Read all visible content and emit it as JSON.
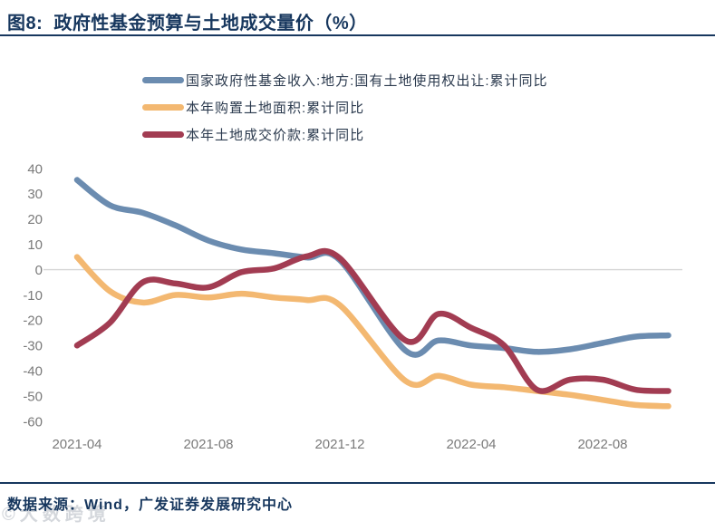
{
  "header": {
    "title": "图8:  政府性基金预算与土地成交量价（%）"
  },
  "source": {
    "text": "数据来源：Wind，广发证券发展研究中心"
  },
  "watermark": {
    "text": "©大数跨境"
  },
  "colors": {
    "title_navy": "#17375e",
    "axis_text": "#7a7a7a",
    "zero_line": "#d6d6d6",
    "series_blue": "#6b8cb0",
    "series_orange": "#f3b871",
    "series_red": "#a23c52"
  },
  "chart_data": {
    "type": "line",
    "title": "图8: 政府性基金预算与土地成交量价（%）",
    "xlabel": "",
    "ylabel": "",
    "ylim": [
      -60,
      40
    ],
    "yticks": [
      40,
      30,
      20,
      10,
      0,
      -10,
      -20,
      -30,
      -40,
      -50,
      -60
    ],
    "grid": "zero-line-only",
    "legend_position": "top-left",
    "categories": [
      "2021-04",
      "2021-05",
      "2021-06",
      "2021-07",
      "2021-08",
      "2021-09",
      "2021-10",
      "2021-11",
      "2021-12",
      "2022-02",
      "2022-03",
      "2022-04",
      "2022-05",
      "2022-06",
      "2022-07",
      "2022-08",
      "2022-09",
      "2022-10"
    ],
    "month_offsets": [
      0,
      1,
      2,
      3,
      4,
      5,
      6,
      7,
      8,
      10,
      11,
      12,
      13,
      14,
      15,
      16,
      17,
      18
    ],
    "xticks": [
      {
        "label": "2021-04",
        "month": 0
      },
      {
        "label": "2021-08",
        "month": 4
      },
      {
        "label": "2021-12",
        "month": 8
      },
      {
        "label": "2022-04",
        "month": 12
      },
      {
        "label": "2022-08",
        "month": 16
      }
    ],
    "series": [
      {
        "name": "国家政府性基金收入:地方:国有土地使用权出让:累计同比",
        "color": "#6b8cb0",
        "values": [
          35.5,
          25.5,
          22.5,
          17.5,
          11.5,
          8,
          6.5,
          4.8,
          3.8,
          -32,
          -28,
          -30,
          -31,
          -32.5,
          -31.5,
          -29,
          -26.5,
          -26
        ]
      },
      {
        "name": "本年购置土地面积:累计同比",
        "color": "#f3b871",
        "values": [
          5,
          -8.5,
          -13,
          -10,
          -11,
          -9.5,
          -11,
          -12,
          -14,
          -44,
          -42,
          -45.5,
          -46.5,
          -48,
          -49.5,
          -51.5,
          -53.5,
          -54
        ]
      },
      {
        "name": "本年土地成交价款:累计同比",
        "color": "#a23c52",
        "values": [
          -30,
          -21,
          -5,
          -5.5,
          -7,
          -1,
          0.5,
          5.3,
          4.5,
          -28,
          -17.5,
          -23,
          -30,
          -47.5,
          -43.5,
          -43.5,
          -47.5,
          -48
        ]
      }
    ]
  }
}
